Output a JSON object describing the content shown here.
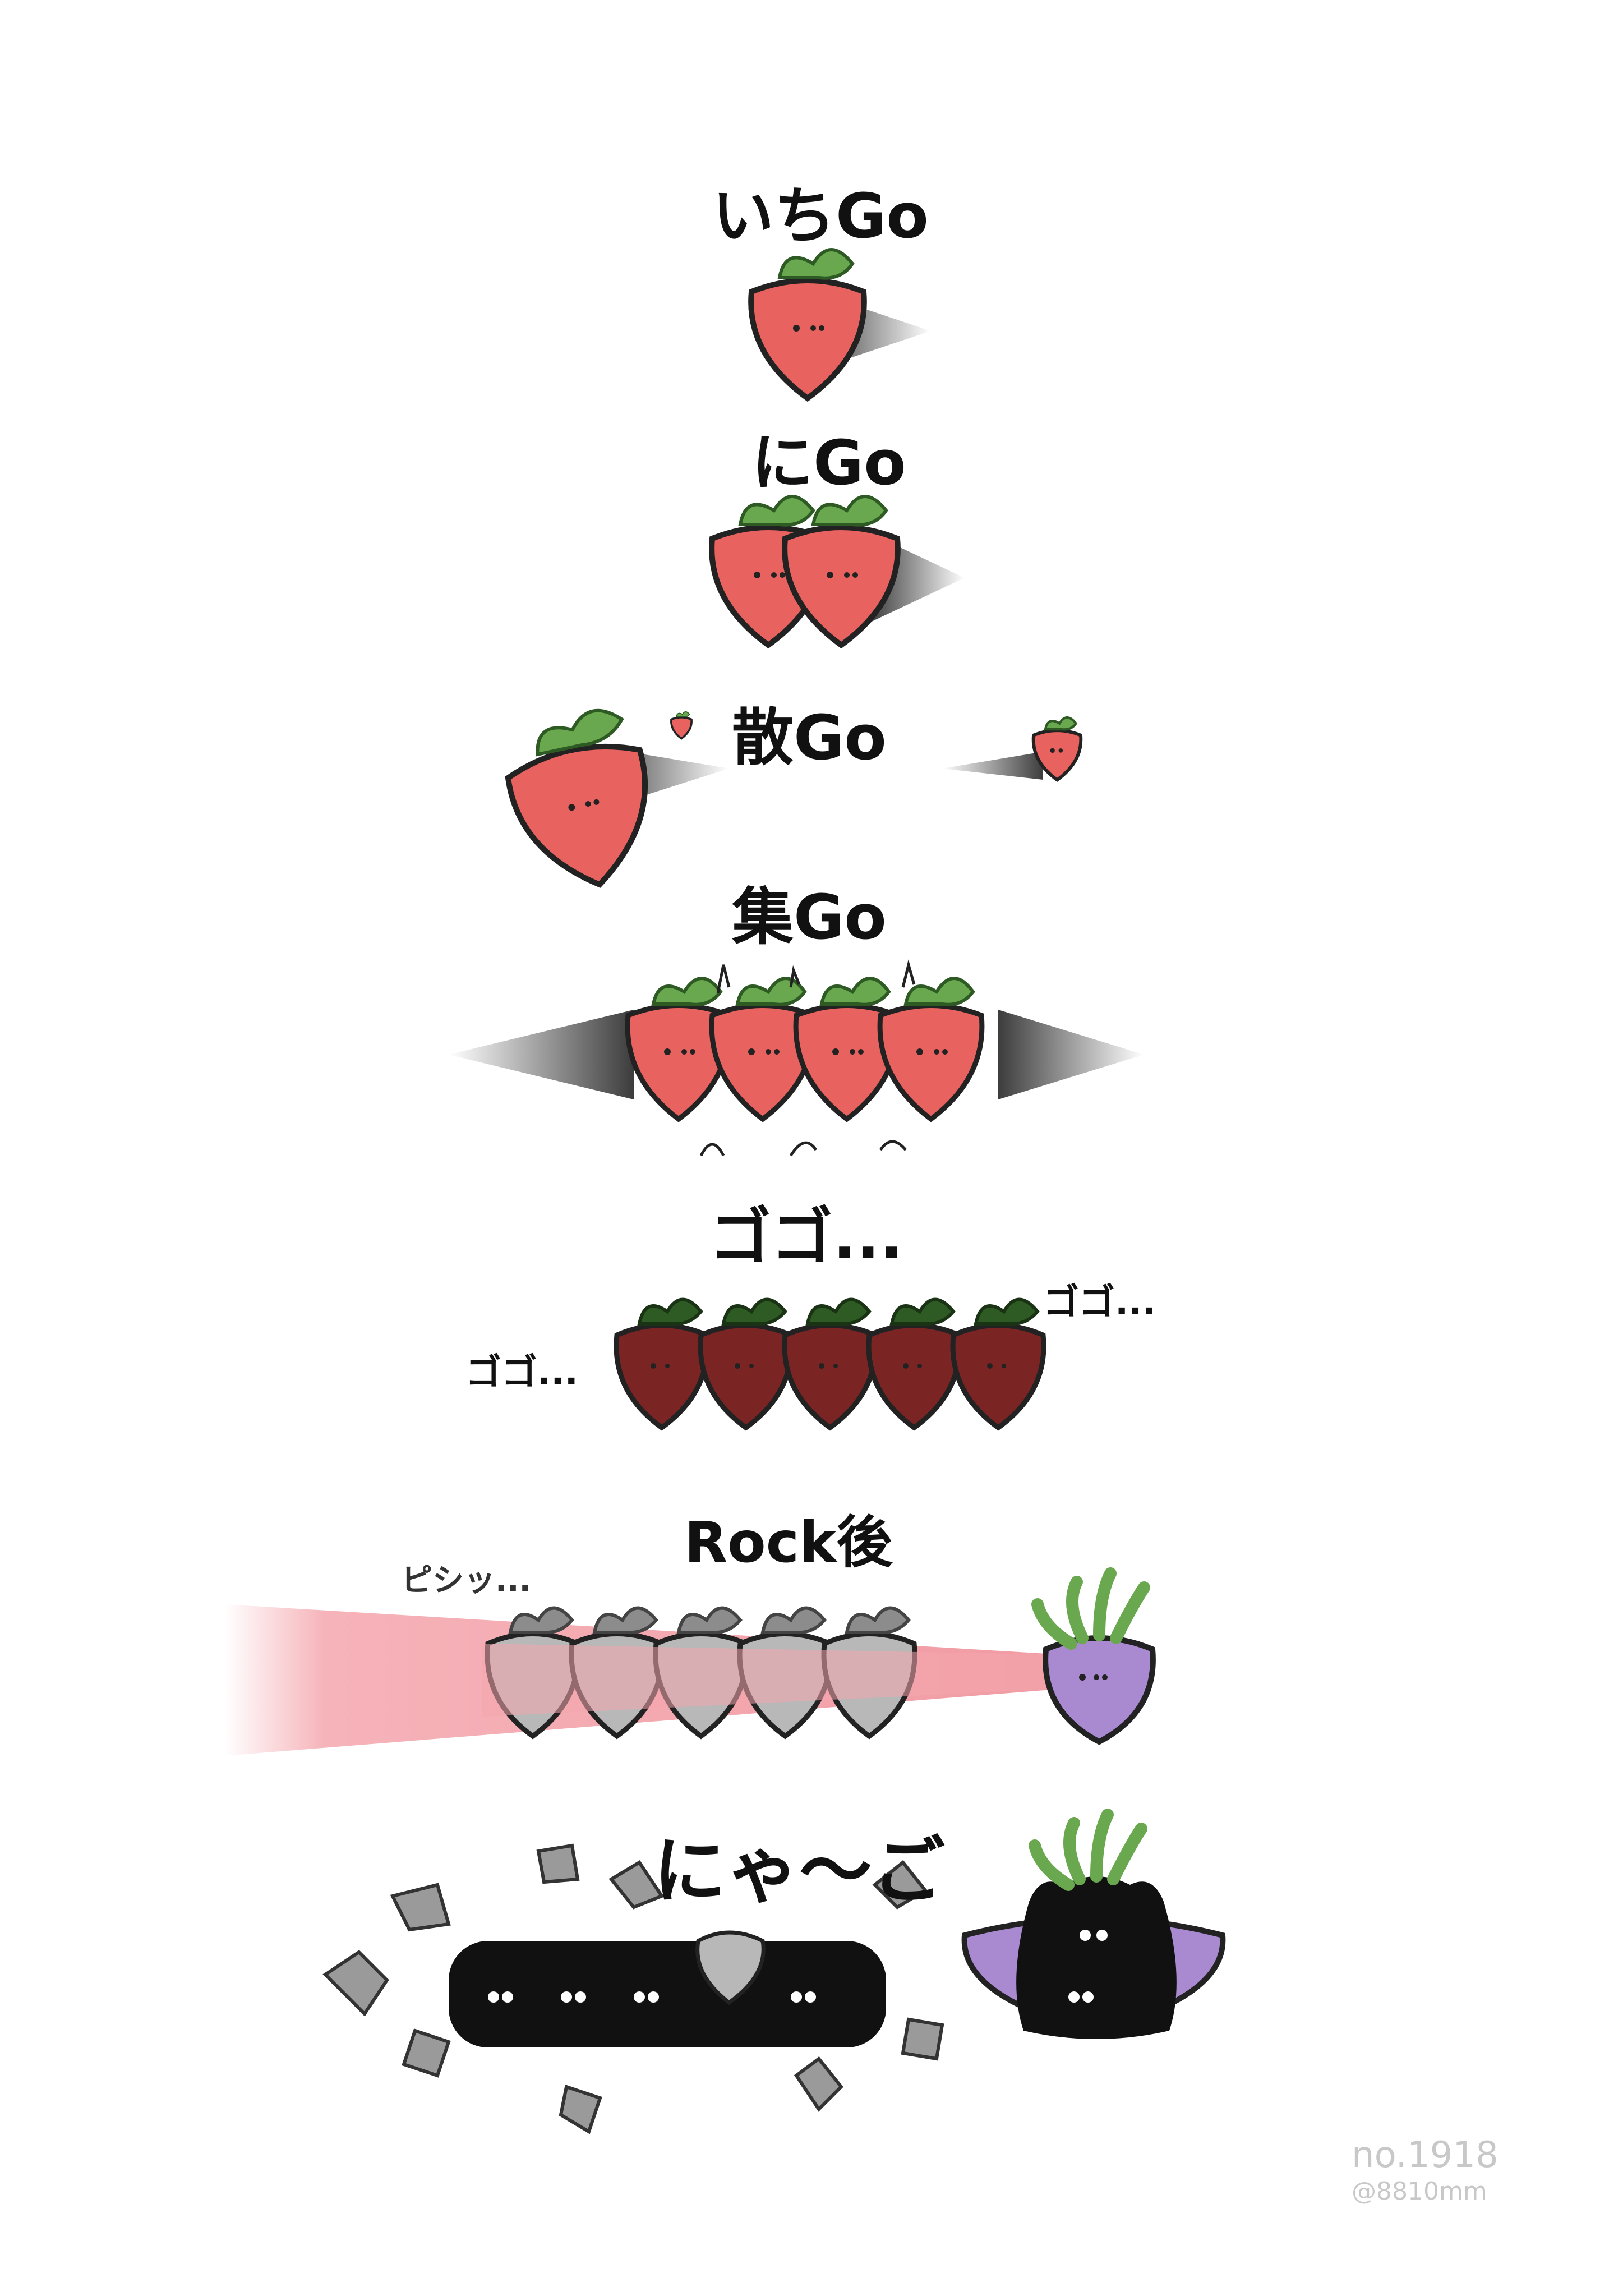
{
  "panels": {
    "ichigo": {
      "title": "いちGo"
    },
    "nigo": {
      "title": "にGo"
    },
    "sango": {
      "title": "散Go"
    },
    "shugo": {
      "title": "集Go"
    },
    "gogo": {
      "title": "ゴゴ...",
      "left_sfx": "ゴゴ...",
      "right_sfx": "ゴゴ..."
    },
    "rockgo": {
      "title": "Rock後",
      "sfx": "ピシッ..."
    },
    "nyago": {
      "title": "にゃ〜ご"
    }
  },
  "signature": {
    "number": "no.1918",
    "handle": "@8810mm"
  },
  "colors": {
    "strawberry": "#e8625f",
    "strawberry_dark": "#7a2424",
    "leaf": "#6aa84f",
    "leaf_dark": "#2e5a24",
    "stone": "#b8b8b8",
    "beam": "#f4a6ad",
    "turnip": "#a98ad0",
    "cat": "#111111"
  },
  "icons": [
    "strawberry-icon",
    "turnip-icon",
    "black-cat-icon"
  ]
}
